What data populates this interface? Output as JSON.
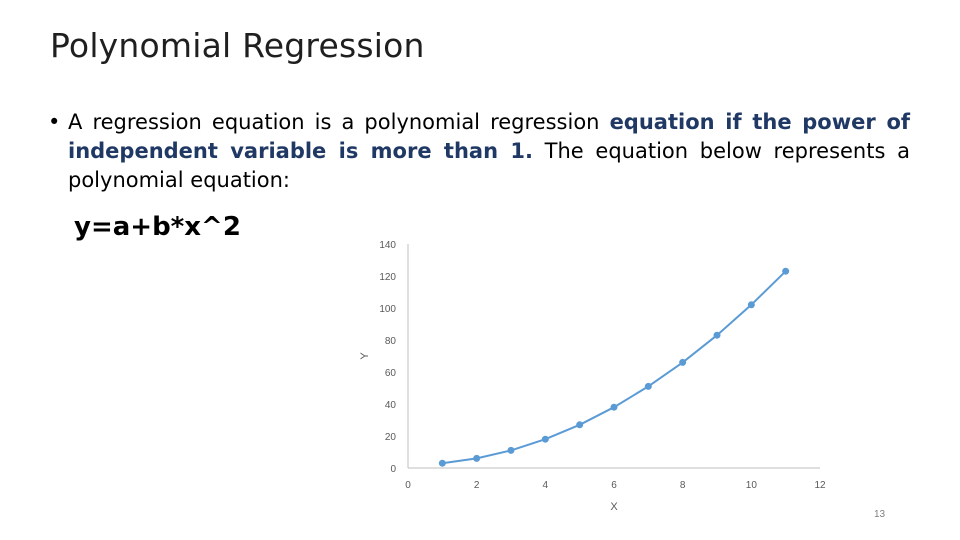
{
  "slide": {
    "title": "Polynomial Regression",
    "bullet": {
      "part1": "A regression equation is a polynomial regression ",
      "emphasis": "equation if the power of independent variable is more than 1.",
      "part2": " The equation below represents a polynomial equation:"
    },
    "equation": "y=a+b*x^2",
    "page_number": "13"
  },
  "colors": {
    "accent_text": "#1f3864",
    "series": "#5b9bd5",
    "axis": "#bfbfbf",
    "tick_text": "#595959"
  },
  "chart_data": {
    "type": "scatter",
    "xlabel": "X",
    "ylabel": "Y",
    "xlim": [
      0,
      12
    ],
    "ylim": [
      0,
      140
    ],
    "x_ticks": [
      0,
      2,
      4,
      6,
      8,
      10,
      12
    ],
    "y_ticks": [
      0,
      20,
      40,
      60,
      80,
      100,
      120,
      140
    ],
    "grid": false,
    "x": [
      1,
      2,
      3,
      4,
      5,
      6,
      7,
      8,
      9,
      10,
      11
    ],
    "y": [
      3,
      6,
      11,
      18,
      27,
      38,
      51,
      66,
      83,
      102,
      123
    ]
  }
}
